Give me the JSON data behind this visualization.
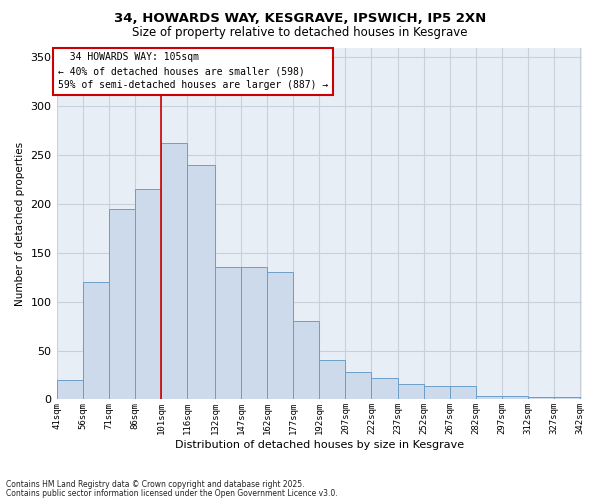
{
  "title_line1": "34, HOWARDS WAY, KESGRAVE, IPSWICH, IP5 2XN",
  "title_line2": "Size of property relative to detached houses in Kesgrave",
  "xlabel": "Distribution of detached houses by size in Kesgrave",
  "ylabel": "Number of detached properties",
  "footnote1": "Contains HM Land Registry data © Crown copyright and database right 2025.",
  "footnote2": "Contains public sector information licensed under the Open Government Licence v3.0.",
  "annotation_line1": "  34 HOWARDS WAY: 105sqm",
  "annotation_line2": "← 40% of detached houses are smaller (598)",
  "annotation_line3": "59% of semi-detached houses are larger (887) →",
  "property_line_x": 101,
  "bar_left_edges": [
    41,
    56,
    71,
    86,
    101,
    116,
    132,
    147,
    162,
    177,
    192,
    207,
    222,
    237,
    252,
    267,
    282,
    297,
    312,
    327
  ],
  "bar_widths": [
    15,
    15,
    15,
    15,
    15,
    16,
    15,
    15,
    15,
    15,
    15,
    15,
    15,
    15,
    15,
    15,
    15,
    15,
    15,
    15
  ],
  "bar_heights": [
    20,
    120,
    195,
    215,
    262,
    240,
    135,
    135,
    130,
    80,
    40,
    28,
    22,
    16,
    14,
    14,
    4,
    4,
    2,
    2
  ],
  "xtick_labels": [
    "41sqm",
    "56sqm",
    "71sqm",
    "86sqm",
    "101sqm",
    "116sqm",
    "132sqm",
    "147sqm",
    "162sqm",
    "177sqm",
    "192sqm",
    "207sqm",
    "222sqm",
    "237sqm",
    "252sqm",
    "267sqm",
    "282sqm",
    "297sqm",
    "312sqm",
    "327sqm",
    "342sqm"
  ],
  "xtick_positions": [
    41,
    56,
    71,
    86,
    101,
    116,
    132,
    147,
    162,
    177,
    192,
    207,
    222,
    237,
    252,
    267,
    282,
    297,
    312,
    327,
    342
  ],
  "bar_color": "#cddaeb",
  "bar_edgecolor": "#6b9ec8",
  "redline_color": "#cc0000",
  "grid_color": "#c8d0dc",
  "background_color": "#e8eef6",
  "ylim": [
    0,
    360
  ],
  "yticks": [
    0,
    50,
    100,
    150,
    200,
    250,
    300,
    350
  ],
  "annotation_box_facecolor": "#ffffff",
  "annotation_box_edgecolor": "#cc0000",
  "title_fontsize": 9.5,
  "subtitle_fontsize": 8.5
}
